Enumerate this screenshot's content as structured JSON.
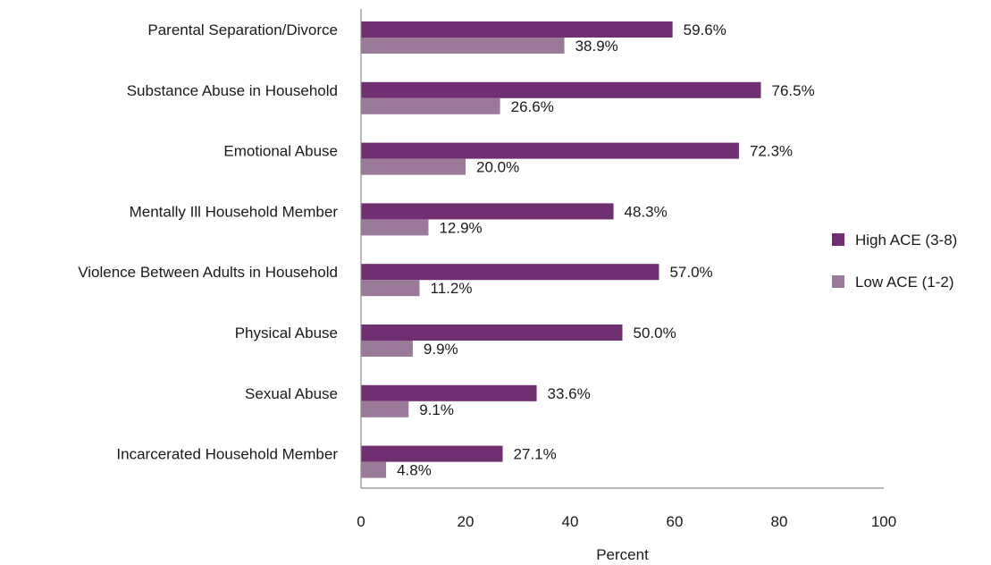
{
  "chart_data": {
    "type": "bar",
    "orientation": "horizontal",
    "title": "",
    "xlabel": "Percent",
    "ylabel": "",
    "xlim": [
      0,
      100
    ],
    "xticks": [
      0,
      20,
      40,
      60,
      80,
      100
    ],
    "grid": false,
    "legend_position": "right",
    "categories": [
      "Parental Separation/Divorce",
      "Substance Abuse in Household",
      "Emotional Abuse",
      "Mentally Ill Household Member",
      "Violence Between Adults in Household",
      "Physical Abuse",
      "Sexual Abuse",
      "Incarcerated Household Member"
    ],
    "series": [
      {
        "name": "High ACE (3-8)",
        "color": "#6f2f72",
        "values": [
          59.6,
          76.5,
          72.3,
          48.3,
          57.0,
          50.0,
          33.6,
          27.1
        ],
        "labels": [
          "59.6%",
          "76.5%",
          "72.3%",
          "48.3%",
          "57.0%",
          "50.0%",
          "33.6%",
          "27.1%"
        ]
      },
      {
        "name": "Low ACE (1-2)",
        "color": "#9a7a98",
        "values": [
          38.9,
          26.6,
          20.0,
          12.9,
          11.2,
          9.9,
          9.1,
          4.8
        ],
        "labels": [
          "38.9%",
          "26.6%",
          "20.0%",
          "12.9%",
          "11.2%",
          "9.9%",
          "9.1%",
          "4.8%"
        ]
      }
    ]
  }
}
